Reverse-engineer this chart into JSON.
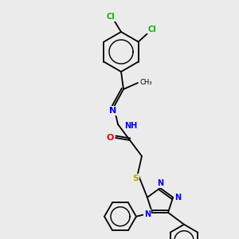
{
  "background_color": "#ebebeb",
  "atom_colors": {
    "C": "#000000",
    "N": "#0000ee",
    "O": "#ee0000",
    "S": "#aaaa00",
    "Cl": "#00bb00",
    "H": "#000000"
  },
  "bond_color": "#000000",
  "figsize": [
    3.0,
    3.0
  ],
  "dpi": 100
}
